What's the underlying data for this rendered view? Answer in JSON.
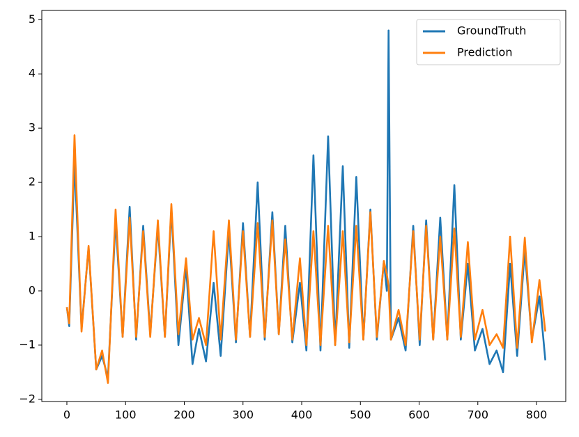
{
  "chart_data": {
    "type": "line",
    "x": [
      0,
      4,
      13,
      25,
      37,
      50,
      60,
      70,
      83,
      95,
      107,
      118,
      130,
      142,
      155,
      167,
      178,
      190,
      203,
      214,
      225,
      237,
      250,
      262,
      276,
      288,
      300,
      312,
      325,
      337,
      350,
      361,
      372,
      384,
      397,
      408,
      420,
      432,
      445,
      457,
      470,
      481,
      493,
      505,
      517,
      528,
      540,
      545,
      548,
      552,
      565,
      577,
      590,
      601,
      612,
      624,
      636,
      648,
      660,
      671,
      683,
      695,
      708,
      720,
      732,
      743,
      755,
      767,
      780,
      792,
      805,
      815
    ],
    "series": [
      {
        "name": "GroundTruth",
        "color": "#1f77b4",
        "values": [
          -0.3,
          -0.65,
          2.4,
          -0.7,
          0.8,
          -1.45,
          -1.2,
          -1.6,
          1.3,
          -0.85,
          1.55,
          -0.9,
          1.2,
          -0.8,
          1.2,
          -0.85,
          1.5,
          -1.0,
          0.45,
          -1.35,
          -0.7,
          -1.3,
          0.15,
          -1.2,
          1.1,
          -0.95,
          1.25,
          -0.85,
          2.0,
          -0.9,
          1.45,
          -0.8,
          1.2,
          -0.95,
          0.15,
          -1.1,
          2.5,
          -1.1,
          2.85,
          -1.0,
          2.3,
          -1.05,
          2.1,
          -0.9,
          1.5,
          -0.9,
          0.55,
          0.0,
          4.8,
          -0.9,
          -0.5,
          -1.1,
          1.2,
          -1.0,
          1.3,
          -0.9,
          1.35,
          -0.9,
          1.95,
          -0.9,
          0.5,
          -1.1,
          -0.7,
          -1.35,
          -1.1,
          -1.5,
          0.5,
          -1.2,
          0.75,
          -0.9,
          -0.1,
          -1.28
        ]
      },
      {
        "name": "Prediction",
        "color": "#ff7f0e",
        "values": [
          -0.3,
          -0.6,
          2.87,
          -0.75,
          0.83,
          -1.45,
          -1.1,
          -1.7,
          1.5,
          -0.85,
          1.35,
          -0.85,
          1.1,
          -0.85,
          1.3,
          -0.85,
          1.6,
          -0.8,
          0.6,
          -0.9,
          -0.5,
          -1.0,
          1.1,
          -0.9,
          1.3,
          -0.9,
          1.1,
          -0.85,
          1.25,
          -0.85,
          1.3,
          -0.8,
          0.95,
          -0.9,
          0.6,
          -1.0,
          1.1,
          -1.0,
          1.2,
          -1.0,
          1.1,
          -0.95,
          1.2,
          -0.9,
          1.45,
          -0.85,
          0.55,
          0.3,
          0.1,
          -0.9,
          -0.35,
          -1.0,
          1.1,
          -0.9,
          1.2,
          -0.9,
          1.0,
          -0.9,
          1.15,
          -0.85,
          0.9,
          -0.9,
          -0.35,
          -1.0,
          -0.8,
          -1.05,
          1.0,
          -1.05,
          0.98,
          -0.95,
          0.2,
          -0.75
        ]
      }
    ],
    "xlim": [
      -42.7,
      849.8
    ],
    "ylim": [
      -2.04,
      5.17
    ],
    "xticks": [
      0,
      100,
      200,
      300,
      400,
      500,
      600,
      700,
      800
    ],
    "yticks": [
      {
        "value": -2,
        "label": "−2"
      },
      {
        "value": -1,
        "label": "−1"
      },
      0,
      1,
      2,
      3,
      4,
      5
    ],
    "legend": "upper right"
  }
}
